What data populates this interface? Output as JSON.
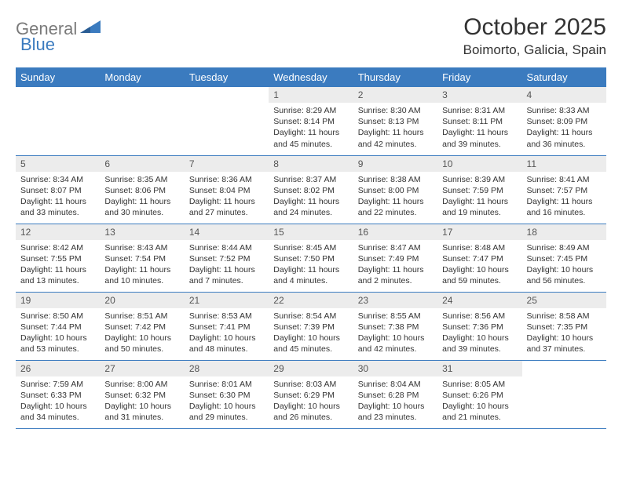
{
  "logo": {
    "part1": "General",
    "part2": "Blue"
  },
  "title": "October 2025",
  "location": "Boimorto, Galicia, Spain",
  "colors": {
    "header_bg": "#3b7bbf",
    "header_text": "#ffffff",
    "daynum_bg": "#ececec",
    "cell_border": "#3b7bbf",
    "body_text": "#333333",
    "logo_gray": "#7a7a7a",
    "logo_blue": "#3b7bbf"
  },
  "weekdays": [
    "Sunday",
    "Monday",
    "Tuesday",
    "Wednesday",
    "Thursday",
    "Friday",
    "Saturday"
  ],
  "weeks": [
    [
      null,
      null,
      null,
      {
        "n": "1",
        "sr": "8:29 AM",
        "ss": "8:14 PM",
        "dl": "11 hours and 45 minutes."
      },
      {
        "n": "2",
        "sr": "8:30 AM",
        "ss": "8:13 PM",
        "dl": "11 hours and 42 minutes."
      },
      {
        "n": "3",
        "sr": "8:31 AM",
        "ss": "8:11 PM",
        "dl": "11 hours and 39 minutes."
      },
      {
        "n": "4",
        "sr": "8:33 AM",
        "ss": "8:09 PM",
        "dl": "11 hours and 36 minutes."
      }
    ],
    [
      {
        "n": "5",
        "sr": "8:34 AM",
        "ss": "8:07 PM",
        "dl": "11 hours and 33 minutes."
      },
      {
        "n": "6",
        "sr": "8:35 AM",
        "ss": "8:06 PM",
        "dl": "11 hours and 30 minutes."
      },
      {
        "n": "7",
        "sr": "8:36 AM",
        "ss": "8:04 PM",
        "dl": "11 hours and 27 minutes."
      },
      {
        "n": "8",
        "sr": "8:37 AM",
        "ss": "8:02 PM",
        "dl": "11 hours and 24 minutes."
      },
      {
        "n": "9",
        "sr": "8:38 AM",
        "ss": "8:00 PM",
        "dl": "11 hours and 22 minutes."
      },
      {
        "n": "10",
        "sr": "8:39 AM",
        "ss": "7:59 PM",
        "dl": "11 hours and 19 minutes."
      },
      {
        "n": "11",
        "sr": "8:41 AM",
        "ss": "7:57 PM",
        "dl": "11 hours and 16 minutes."
      }
    ],
    [
      {
        "n": "12",
        "sr": "8:42 AM",
        "ss": "7:55 PM",
        "dl": "11 hours and 13 minutes."
      },
      {
        "n": "13",
        "sr": "8:43 AM",
        "ss": "7:54 PM",
        "dl": "11 hours and 10 minutes."
      },
      {
        "n": "14",
        "sr": "8:44 AM",
        "ss": "7:52 PM",
        "dl": "11 hours and 7 minutes."
      },
      {
        "n": "15",
        "sr": "8:45 AM",
        "ss": "7:50 PM",
        "dl": "11 hours and 4 minutes."
      },
      {
        "n": "16",
        "sr": "8:47 AM",
        "ss": "7:49 PM",
        "dl": "11 hours and 2 minutes."
      },
      {
        "n": "17",
        "sr": "8:48 AM",
        "ss": "7:47 PM",
        "dl": "10 hours and 59 minutes."
      },
      {
        "n": "18",
        "sr": "8:49 AM",
        "ss": "7:45 PM",
        "dl": "10 hours and 56 minutes."
      }
    ],
    [
      {
        "n": "19",
        "sr": "8:50 AM",
        "ss": "7:44 PM",
        "dl": "10 hours and 53 minutes."
      },
      {
        "n": "20",
        "sr": "8:51 AM",
        "ss": "7:42 PM",
        "dl": "10 hours and 50 minutes."
      },
      {
        "n": "21",
        "sr": "8:53 AM",
        "ss": "7:41 PM",
        "dl": "10 hours and 48 minutes."
      },
      {
        "n": "22",
        "sr": "8:54 AM",
        "ss": "7:39 PM",
        "dl": "10 hours and 45 minutes."
      },
      {
        "n": "23",
        "sr": "8:55 AM",
        "ss": "7:38 PM",
        "dl": "10 hours and 42 minutes."
      },
      {
        "n": "24",
        "sr": "8:56 AM",
        "ss": "7:36 PM",
        "dl": "10 hours and 39 minutes."
      },
      {
        "n": "25",
        "sr": "8:58 AM",
        "ss": "7:35 PM",
        "dl": "10 hours and 37 minutes."
      }
    ],
    [
      {
        "n": "26",
        "sr": "7:59 AM",
        "ss": "6:33 PM",
        "dl": "10 hours and 34 minutes."
      },
      {
        "n": "27",
        "sr": "8:00 AM",
        "ss": "6:32 PM",
        "dl": "10 hours and 31 minutes."
      },
      {
        "n": "28",
        "sr": "8:01 AM",
        "ss": "6:30 PM",
        "dl": "10 hours and 29 minutes."
      },
      {
        "n": "29",
        "sr": "8:03 AM",
        "ss": "6:29 PM",
        "dl": "10 hours and 26 minutes."
      },
      {
        "n": "30",
        "sr": "8:04 AM",
        "ss": "6:28 PM",
        "dl": "10 hours and 23 minutes."
      },
      {
        "n": "31",
        "sr": "8:05 AM",
        "ss": "6:26 PM",
        "dl": "10 hours and 21 minutes."
      },
      null
    ]
  ],
  "labels": {
    "sunrise": "Sunrise:",
    "sunset": "Sunset:",
    "daylight": "Daylight:"
  }
}
